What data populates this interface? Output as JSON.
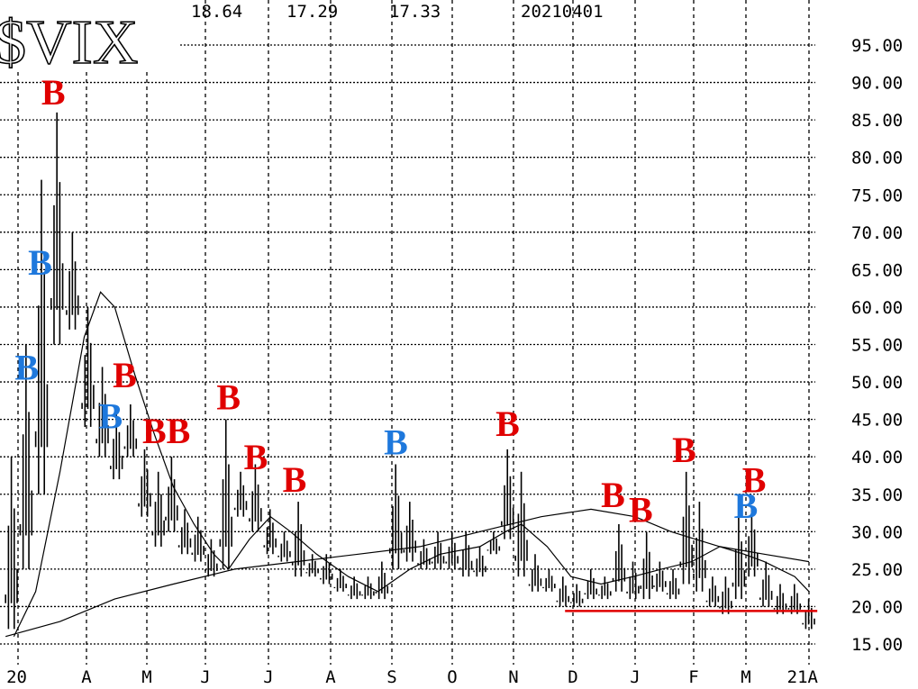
{
  "chart_data": {
    "type": "bar",
    "subtype": "high-low price bars with moving averages",
    "title": "$VIX",
    "header_values": [
      "18.64",
      "17.29",
      "17.33",
      "20210401"
    ],
    "ylim": [
      15,
      95
    ],
    "y_ticks": [
      "95.00",
      "90.00",
      "85.00",
      "80.00",
      "75.00",
      "70.00",
      "65.00",
      "60.00",
      "55.00",
      "50.00",
      "45.00",
      "40.00",
      "35.00",
      "30.00",
      "25.00",
      "20.00",
      "15.00"
    ],
    "x_ticks": [
      {
        "date": "2020-03-01",
        "label": "20"
      },
      {
        "date": "2020-04-01",
        "label": "A"
      },
      {
        "date": "2020-05-01",
        "label": "M"
      },
      {
        "date": "2020-06-01",
        "label": "J"
      },
      {
        "date": "2020-07-01",
        "label": "J"
      },
      {
        "date": "2020-08-01",
        "label": "A"
      },
      {
        "date": "2020-09-01",
        "label": "S"
      },
      {
        "date": "2020-10-01",
        "label": "O"
      },
      {
        "date": "2020-11-01",
        "label": "N"
      },
      {
        "date": "2020-12-01",
        "label": "D"
      },
      {
        "date": "2021-01-01",
        "label": "J"
      },
      {
        "date": "2021-02-01",
        "label": "F"
      },
      {
        "date": "2021-03-01",
        "label": "M"
      },
      {
        "date": "2021-04-01",
        "label": "21A"
      }
    ],
    "grid": true,
    "colors": {
      "bars": "#000000",
      "ma": "#000000",
      "support_line": "#e00000",
      "sell_signal": "#e00000",
      "buy_signal": "#1e78dc"
    },
    "price_bars": [
      [
        "2020-02-24",
        40,
        17
      ],
      [
        "2020-03-02",
        55,
        25
      ],
      [
        "2020-03-09",
        77,
        35
      ],
      [
        "2020-03-16",
        86,
        55
      ],
      [
        "2020-03-23",
        70,
        57
      ],
      [
        "2020-03-30",
        60,
        44
      ],
      [
        "2020-04-06",
        52,
        40
      ],
      [
        "2020-04-13",
        46,
        37
      ],
      [
        "2020-04-20",
        47,
        40
      ],
      [
        "2020-04-27",
        41,
        32
      ],
      [
        "2020-05-04",
        38,
        28
      ],
      [
        "2020-05-11",
        40,
        30
      ],
      [
        "2020-05-18",
        33,
        27
      ],
      [
        "2020-05-25",
        32,
        26
      ],
      [
        "2020-06-01",
        29,
        24
      ],
      [
        "2020-06-08",
        45,
        25
      ],
      [
        "2020-06-15",
        38,
        32
      ],
      [
        "2020-06-22",
        39,
        30
      ],
      [
        "2020-06-29",
        33,
        27
      ],
      [
        "2020-07-06",
        30,
        26
      ],
      [
        "2020-07-13",
        34,
        24
      ],
      [
        "2020-07-20",
        27,
        24
      ],
      [
        "2020-07-27",
        27,
        23
      ],
      [
        "2020-08-03",
        25,
        22
      ],
      [
        "2020-08-10",
        24,
        21
      ],
      [
        "2020-08-17",
        24,
        21
      ],
      [
        "2020-08-24",
        26,
        21
      ],
      [
        "2020-08-31",
        39,
        25
      ],
      [
        "2020-09-07",
        34,
        26
      ],
      [
        "2020-09-14",
        29,
        25
      ],
      [
        "2020-09-21",
        30,
        25
      ],
      [
        "2020-09-28",
        30,
        25
      ],
      [
        "2020-10-05",
        30,
        24
      ],
      [
        "2020-10-12",
        28,
        24
      ],
      [
        "2020-10-19",
        30,
        27
      ],
      [
        "2020-10-26",
        41,
        29
      ],
      [
        "2020-11-02",
        38,
        24
      ],
      [
        "2020-11-09",
        27,
        22
      ],
      [
        "2020-11-16",
        25,
        22
      ],
      [
        "2020-11-23",
        24,
        20
      ],
      [
        "2020-11-30",
        23,
        20
      ],
      [
        "2020-12-07",
        25,
        21
      ],
      [
        "2020-12-14",
        24,
        21
      ],
      [
        "2020-12-21",
        31,
        22
      ],
      [
        "2020-12-28",
        26,
        21
      ],
      [
        "2021-01-04",
        30,
        21
      ],
      [
        "2021-01-11",
        26,
        22
      ],
      [
        "2021-01-18",
        25,
        21
      ],
      [
        "2021-01-25",
        38,
        23
      ],
      [
        "2021-02-01",
        34,
        22
      ],
      [
        "2021-02-08",
        24,
        20
      ],
      [
        "2021-02-15",
        24,
        19
      ],
      [
        "2021-02-22",
        32,
        21
      ],
      [
        "2021-03-01",
        33,
        24
      ],
      [
        "2021-03-08",
        26,
        20
      ],
      [
        "2021-03-15",
        23,
        19
      ],
      [
        "2021-03-22",
        23,
        19
      ],
      [
        "2021-03-29",
        21,
        17
      ]
    ],
    "moving_averages": [
      {
        "points": [
          [
            "2020-02-28",
            16
          ],
          [
            "2020-03-09",
            22
          ],
          [
            "2020-03-20",
            38
          ],
          [
            "2020-03-31",
            56
          ],
          [
            "2020-04-08",
            62
          ],
          [
            "2020-04-15",
            60
          ],
          [
            "2020-04-25",
            51
          ],
          [
            "2020-05-05",
            43
          ],
          [
            "2020-05-15",
            36
          ],
          [
            "2020-05-26",
            31
          ],
          [
            "2020-06-05",
            27
          ],
          [
            "2020-06-12",
            25
          ],
          [
            "2020-06-22",
            29
          ],
          [
            "2020-07-02",
            32
          ],
          [
            "2020-07-12",
            30
          ],
          [
            "2020-07-25",
            27
          ],
          [
            "2020-08-10",
            24
          ],
          [
            "2020-08-25",
            22
          ],
          [
            "2020-09-10",
            25
          ],
          [
            "2020-09-25",
            27
          ],
          [
            "2020-10-15",
            28
          ],
          [
            "2020-10-28",
            30
          ],
          [
            "2020-11-05",
            31
          ],
          [
            "2020-11-18",
            28
          ],
          [
            "2020-11-30",
            24
          ],
          [
            "2020-12-15",
            23
          ],
          [
            "2020-12-31",
            24
          ],
          [
            "2021-01-15",
            25
          ],
          [
            "2021-01-31",
            26
          ],
          [
            "2021-02-15",
            28
          ],
          [
            "2021-02-28",
            27
          ],
          [
            "2021-03-10",
            26
          ],
          [
            "2021-03-25",
            24
          ],
          [
            "2021-04-01",
            22
          ]
        ]
      },
      {
        "points": [
          [
            "2020-02-24",
            16
          ],
          [
            "2020-03-20",
            18
          ],
          [
            "2020-04-15",
            21
          ],
          [
            "2020-05-15",
            23
          ],
          [
            "2020-06-15",
            25
          ],
          [
            "2020-07-15",
            26
          ],
          [
            "2020-08-15",
            27
          ],
          [
            "2020-09-15",
            28
          ],
          [
            "2020-10-15",
            30
          ],
          [
            "2020-11-15",
            32
          ],
          [
            "2020-12-10",
            33
          ],
          [
            "2021-01-01",
            32
          ],
          [
            "2021-01-20",
            30
          ],
          [
            "2021-02-15",
            28
          ],
          [
            "2021-03-10",
            27
          ],
          [
            "2021-04-01",
            26
          ]
        ]
      }
    ],
    "support_line": {
      "value": 19.4,
      "from": "2020-11-27",
      "to": "2021-04-05"
    },
    "signals": [
      {
        "label": "B",
        "color": "red",
        "date": "2020-03-17",
        "value": 89
      },
      {
        "label": "B",
        "color": "blue",
        "date": "2020-03-11",
        "value": 66
      },
      {
        "label": "B",
        "color": "blue",
        "date": "2020-03-05",
        "value": 52
      },
      {
        "label": "B",
        "color": "red",
        "date": "2020-04-20",
        "value": 51
      },
      {
        "label": "B",
        "color": "blue",
        "date": "2020-04-13",
        "value": 45.5
      },
      {
        "label": "B",
        "color": "red",
        "date": "2020-05-05",
        "value": 43.5
      },
      {
        "label": "B",
        "color": "red",
        "date": "2020-05-11",
        "value": 43.5
      },
      {
        "label": "B",
        "color": "red",
        "date": "2020-06-12",
        "value": 48
      },
      {
        "label": "B",
        "color": "red",
        "date": "2020-06-25",
        "value": 40
      },
      {
        "label": "B",
        "color": "red",
        "date": "2020-07-14",
        "value": 37
      },
      {
        "label": "B",
        "color": "blue",
        "date": "2020-09-03",
        "value": 42
      },
      {
        "label": "B",
        "color": "red",
        "date": "2020-10-29",
        "value": 44.5
      },
      {
        "label": "B",
        "color": "red",
        "date": "2020-12-21",
        "value": 35
      },
      {
        "label": "B",
        "color": "red",
        "date": "2021-01-04",
        "value": 33
      },
      {
        "label": "B",
        "color": "red",
        "date": "2021-01-27",
        "value": 41
      },
      {
        "label": "B",
        "color": "blue",
        "date": "2021-03-01",
        "value": 33.5
      },
      {
        "label": "B",
        "color": "red",
        "date": "2021-03-05",
        "value": 35.5
      }
    ]
  }
}
